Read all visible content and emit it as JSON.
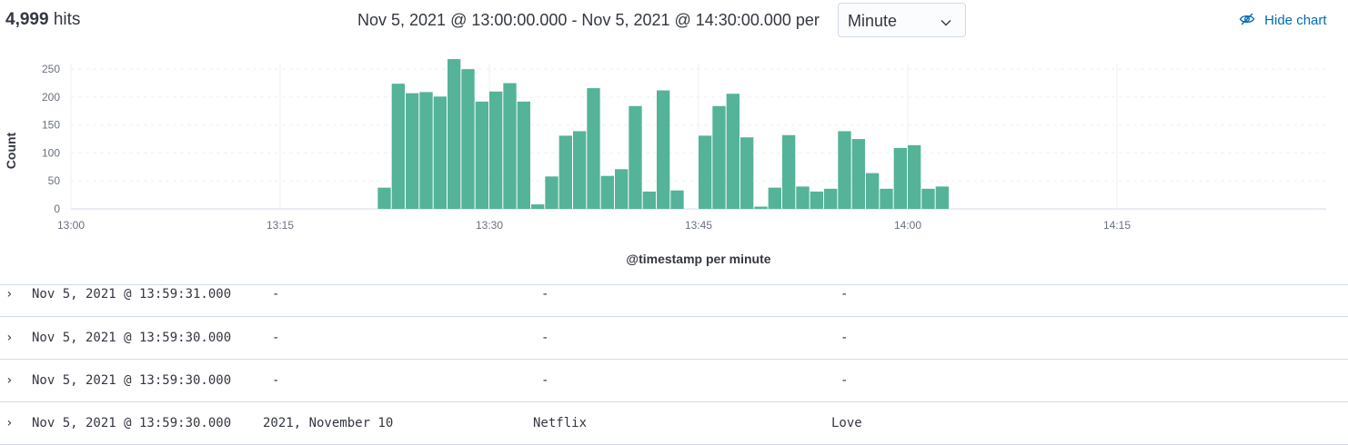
{
  "header": {
    "hits_count": "4,999",
    "hits_label": "hits",
    "time_range": "Nov 5, 2021 @ 13:00:00.000 - Nov 5, 2021 @ 14:30:00.000 per",
    "interval_value": "Minute",
    "hide_chart_label": "Hide chart"
  },
  "colors": {
    "bar": "#54b399",
    "link": "#006bb8"
  },
  "chart_data": {
    "type": "bar",
    "ylabel": "Count",
    "xlabel": "@timestamp per minute",
    "ylim": [
      0,
      260
    ],
    "yticks": [
      0,
      50,
      100,
      150,
      200,
      250
    ],
    "xlim_minutes": [
      0,
      90
    ],
    "xticks": [
      {
        "minute": 0,
        "label": "13:00"
      },
      {
        "minute": 15,
        "label": "13:15"
      },
      {
        "minute": 30,
        "label": "13:30"
      },
      {
        "minute": 45,
        "label": "13:45"
      },
      {
        "minute": 60,
        "label": "14:00"
      },
      {
        "minute": 75,
        "label": "14:15"
      }
    ],
    "x": [
      "13:22",
      "13:23",
      "13:24",
      "13:25",
      "13:26",
      "13:27",
      "13:28",
      "13:29",
      "13:30",
      "13:31",
      "13:32",
      "13:33",
      "13:34",
      "13:35",
      "13:36",
      "13:37",
      "13:38",
      "13:39",
      "13:40",
      "13:41",
      "13:42",
      "13:43",
      "13:44",
      "13:45",
      "13:46",
      "13:47",
      "13:48",
      "13:49",
      "13:50",
      "13:51",
      "13:52",
      "13:53",
      "13:54",
      "13:55",
      "13:56",
      "13:57",
      "13:58",
      "13:59",
      "14:00",
      "14:01",
      "14:02"
    ],
    "values": [
      38,
      224,
      207,
      209,
      201,
      268,
      250,
      192,
      210,
      225,
      192,
      8,
      58,
      131,
      139,
      216,
      59,
      71,
      184,
      31,
      212,
      33,
      0,
      131,
      184,
      206,
      128,
      4,
      38,
      132,
      40,
      31,
      36,
      139,
      125,
      64,
      36,
      109,
      114,
      36,
      40
    ]
  },
  "rows": [
    {
      "timestamp": "Nov 5, 2021 @ 13:59:31.000",
      "col2": "-",
      "col3": "-",
      "col4": "-"
    },
    {
      "timestamp": "Nov 5, 2021 @ 13:59:30.000",
      "col2": "-",
      "col3": "-",
      "col4": "-"
    },
    {
      "timestamp": "Nov 5, 2021 @ 13:59:30.000",
      "col2": "-",
      "col3": "-",
      "col4": "-"
    },
    {
      "timestamp": "Nov 5, 2021 @ 13:59:30.000",
      "col2": "2021, November 10",
      "col3": "Netflix",
      "col4": "Love"
    }
  ]
}
